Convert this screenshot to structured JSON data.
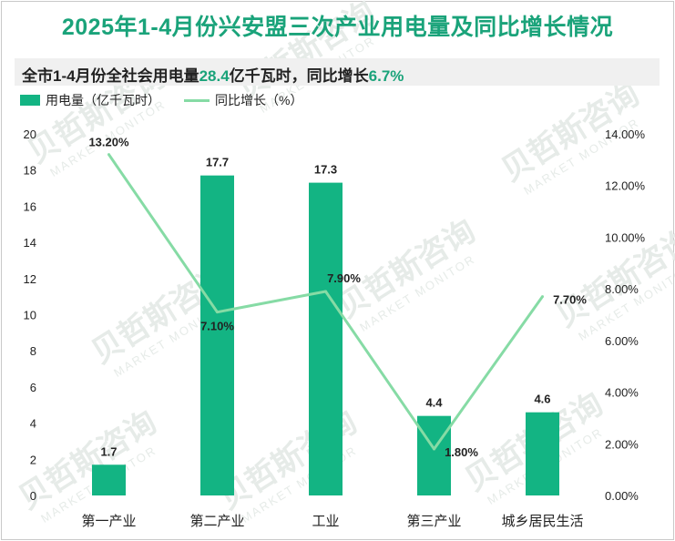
{
  "title": "2025年1-4月份兴安盟三次产业用电量及同比增长情况",
  "summary": {
    "prefix": "全市1-4月份全社会用电量",
    "total": "28.4",
    "mid": "亿千瓦时，同比增长",
    "growth": "6.7%"
  },
  "watermark": {
    "cn": "贝哲斯咨询",
    "en": "MARKET MONITOR"
  },
  "colors": {
    "bar": "#13b483",
    "line": "#86dba5",
    "title": "#1aa37a"
  },
  "chart_data": {
    "type": "bar",
    "categories": [
      "第一产业",
      "第二产业",
      "工业",
      "第三产业",
      "城乡居民生活"
    ],
    "series": [
      {
        "name": "用电量（亿千瓦时）",
        "type": "bar",
        "axis": "left",
        "values": [
          1.7,
          17.7,
          17.3,
          4.4,
          4.6
        ],
        "labels": [
          "1.7",
          "17.7",
          "17.3",
          "4.4",
          "4.6"
        ]
      },
      {
        "name": "同比增长（%）",
        "type": "line",
        "axis": "right",
        "values": [
          13.2,
          7.1,
          7.9,
          1.8,
          7.7
        ],
        "labels": [
          "13.20%",
          "7.10%",
          "7.90%",
          "1.80%",
          "7.70%"
        ]
      }
    ],
    "y_left": {
      "min": 0,
      "max": 20,
      "ticks": [
        "0",
        "2",
        "4",
        "6",
        "8",
        "10",
        "12",
        "14",
        "16",
        "18",
        "20"
      ]
    },
    "y_right": {
      "min": 0,
      "max": 14,
      "ticks": [
        "0.00%",
        "2.00%",
        "4.00%",
        "6.00%",
        "8.00%",
        "10.00%",
        "12.00%",
        "14.00%"
      ]
    },
    "legend_position": "top-left",
    "grid": false
  }
}
